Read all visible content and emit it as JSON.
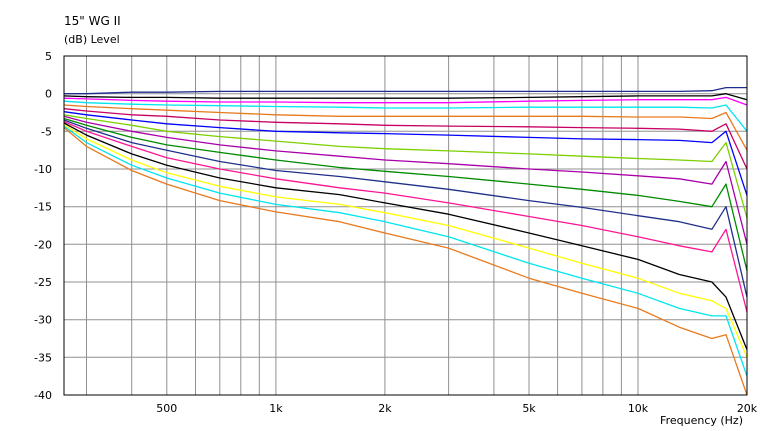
{
  "chart_data": {
    "type": "line",
    "title": "15\" WG II",
    "ylabel": "(dB)  Level",
    "xlabel": "Frequency  (Hz)",
    "x_scale": "log",
    "xlim": [
      260,
      20000
    ],
    "ylim": [
      -40,
      5
    ],
    "grid": true,
    "y_ticks": [
      5,
      0,
      -5,
      -10,
      -15,
      -20,
      -25,
      -30,
      -35,
      -40
    ],
    "x_tick_labels": [
      {
        "value": 500,
        "label": "500"
      },
      {
        "value": 1000,
        "label": "1k"
      },
      {
        "value": 2000,
        "label": "2k"
      },
      {
        "value": 5000,
        "label": "5k"
      },
      {
        "value": 10000,
        "label": "10k"
      },
      {
        "value": 20000,
        "label": "20k"
      }
    ],
    "x_gridlines": [
      300,
      400,
      500,
      600,
      700,
      800,
      900,
      1000,
      2000,
      3000,
      4000,
      5000,
      6000,
      7000,
      8000,
      9000,
      10000,
      20000
    ],
    "x": [
      260,
      300,
      400,
      500,
      700,
      1000,
      1500,
      2000,
      3000,
      5000,
      7000,
      10000,
      13000,
      16000,
      17500,
      20000
    ],
    "series": [
      {
        "color": "#1f2d8f",
        "values": [
          0,
          0,
          0.2,
          0.2,
          0.3,
          0.3,
          0.3,
          0.3,
          0.3,
          0.3,
          0.3,
          0.3,
          0.3,
          0.4,
          0.8,
          0.8
        ]
      },
      {
        "color": "#000000",
        "values": [
          -0.3,
          -0.4,
          -0.5,
          -0.5,
          -0.6,
          -0.6,
          -0.6,
          -0.6,
          -0.6,
          -0.5,
          -0.4,
          -0.3,
          -0.3,
          -0.3,
          0,
          -0.8
        ]
      },
      {
        "color": "#ff00ff",
        "values": [
          -0.6,
          -0.7,
          -0.9,
          -1.0,
          -1.1,
          -1.1,
          -1.2,
          -1.2,
          -1.2,
          -1.0,
          -0.9,
          -0.8,
          -0.8,
          -0.8,
          -0.5,
          -1.5
        ]
      },
      {
        "color": "#00e5ee",
        "values": [
          -1.0,
          -1.2,
          -1.4,
          -1.5,
          -1.6,
          -1.7,
          -1.8,
          -1.9,
          -1.9,
          -1.8,
          -1.8,
          -1.8,
          -1.8,
          -1.9,
          -1.5,
          -5.0
        ]
      },
      {
        "color": "#e87a1e",
        "values": [
          -1.5,
          -1.7,
          -2.0,
          -2.2,
          -2.5,
          -2.8,
          -3.0,
          -3.0,
          -3.0,
          -3.0,
          -3.0,
          -3.1,
          -3.1,
          -3.3,
          -2.5,
          -7.5
        ]
      },
      {
        "color": "#c80064",
        "values": [
          -2.0,
          -2.3,
          -2.8,
          -3.0,
          -3.5,
          -3.8,
          -4.0,
          -4.2,
          -4.3,
          -4.4,
          -4.5,
          -4.6,
          -4.7,
          -5.0,
          -4.0,
          -10.0
        ]
      },
      {
        "color": "#0000ff",
        "values": [
          -2.4,
          -2.8,
          -3.5,
          -4.0,
          -4.5,
          -5.0,
          -5.2,
          -5.3,
          -5.5,
          -5.8,
          -6.0,
          -6.1,
          -6.2,
          -6.5,
          -5.0,
          -13.5
        ]
      },
      {
        "color": "#7cd000",
        "values": [
          -2.8,
          -3.3,
          -4.2,
          -5.0,
          -5.7,
          -6.3,
          -7.0,
          -7.3,
          -7.6,
          -8.0,
          -8.3,
          -8.6,
          -8.8,
          -9.0,
          -6.5,
          -16.5
        ]
      },
      {
        "color": "#aa00aa",
        "values": [
          -3.0,
          -3.8,
          -5.0,
          -5.8,
          -6.8,
          -7.6,
          -8.3,
          -8.8,
          -9.3,
          -10.0,
          -10.4,
          -10.9,
          -11.3,
          -12.0,
          -9.0,
          -20.0
        ]
      },
      {
        "color": "#008a00",
        "values": [
          -3.3,
          -4.2,
          -5.8,
          -6.8,
          -7.8,
          -8.8,
          -9.8,
          -10.3,
          -11.0,
          -12.0,
          -12.7,
          -13.5,
          -14.3,
          -15.0,
          -12.0,
          -23.5
        ]
      },
      {
        "color": "#20308a",
        "values": [
          -3.5,
          -4.6,
          -6.5,
          -7.5,
          -9.0,
          -10.2,
          -11.0,
          -11.7,
          -12.7,
          -14.2,
          -15.1,
          -16.2,
          -17.0,
          -18.0,
          -15.0,
          -27.0
        ]
      },
      {
        "color": "#ff1493",
        "values": [
          -3.7,
          -5.0,
          -7.0,
          -8.5,
          -10.0,
          -11.3,
          -12.5,
          -13.2,
          -14.5,
          -16.3,
          -17.5,
          -19.0,
          -20.2,
          -21.0,
          -18.0,
          -29.0
        ]
      },
      {
        "color": "#000000",
        "values": [
          -3.9,
          -5.5,
          -8.0,
          -9.5,
          -11.2,
          -12.5,
          -13.4,
          -14.5,
          -16.0,
          -18.5,
          -20.2,
          -22.0,
          -24.0,
          -25.0,
          -27.0,
          -34.0
        ]
      },
      {
        "color": "#ffff00",
        "values": [
          -4.1,
          -6.0,
          -8.8,
          -10.5,
          -12.3,
          -13.7,
          -14.7,
          -15.8,
          -17.5,
          -20.5,
          -22.5,
          -24.5,
          -26.5,
          -27.5,
          -28.5,
          -35.0
        ]
      },
      {
        "color": "#00e5ee",
        "values": [
          -4.3,
          -6.5,
          -9.5,
          -11.2,
          -13.2,
          -14.7,
          -15.8,
          -17.0,
          -19.0,
          -22.5,
          -24.5,
          -26.5,
          -28.5,
          -29.5,
          -29.5,
          -37.5
        ]
      },
      {
        "color": "#e87a1e",
        "values": [
          -4.5,
          -7.0,
          -10.2,
          -12.0,
          -14.2,
          -15.7,
          -17.0,
          -18.5,
          -20.5,
          -24.5,
          -26.5,
          -28.5,
          -31.0,
          -32.5,
          -32.0,
          -40.0
        ]
      }
    ]
  }
}
